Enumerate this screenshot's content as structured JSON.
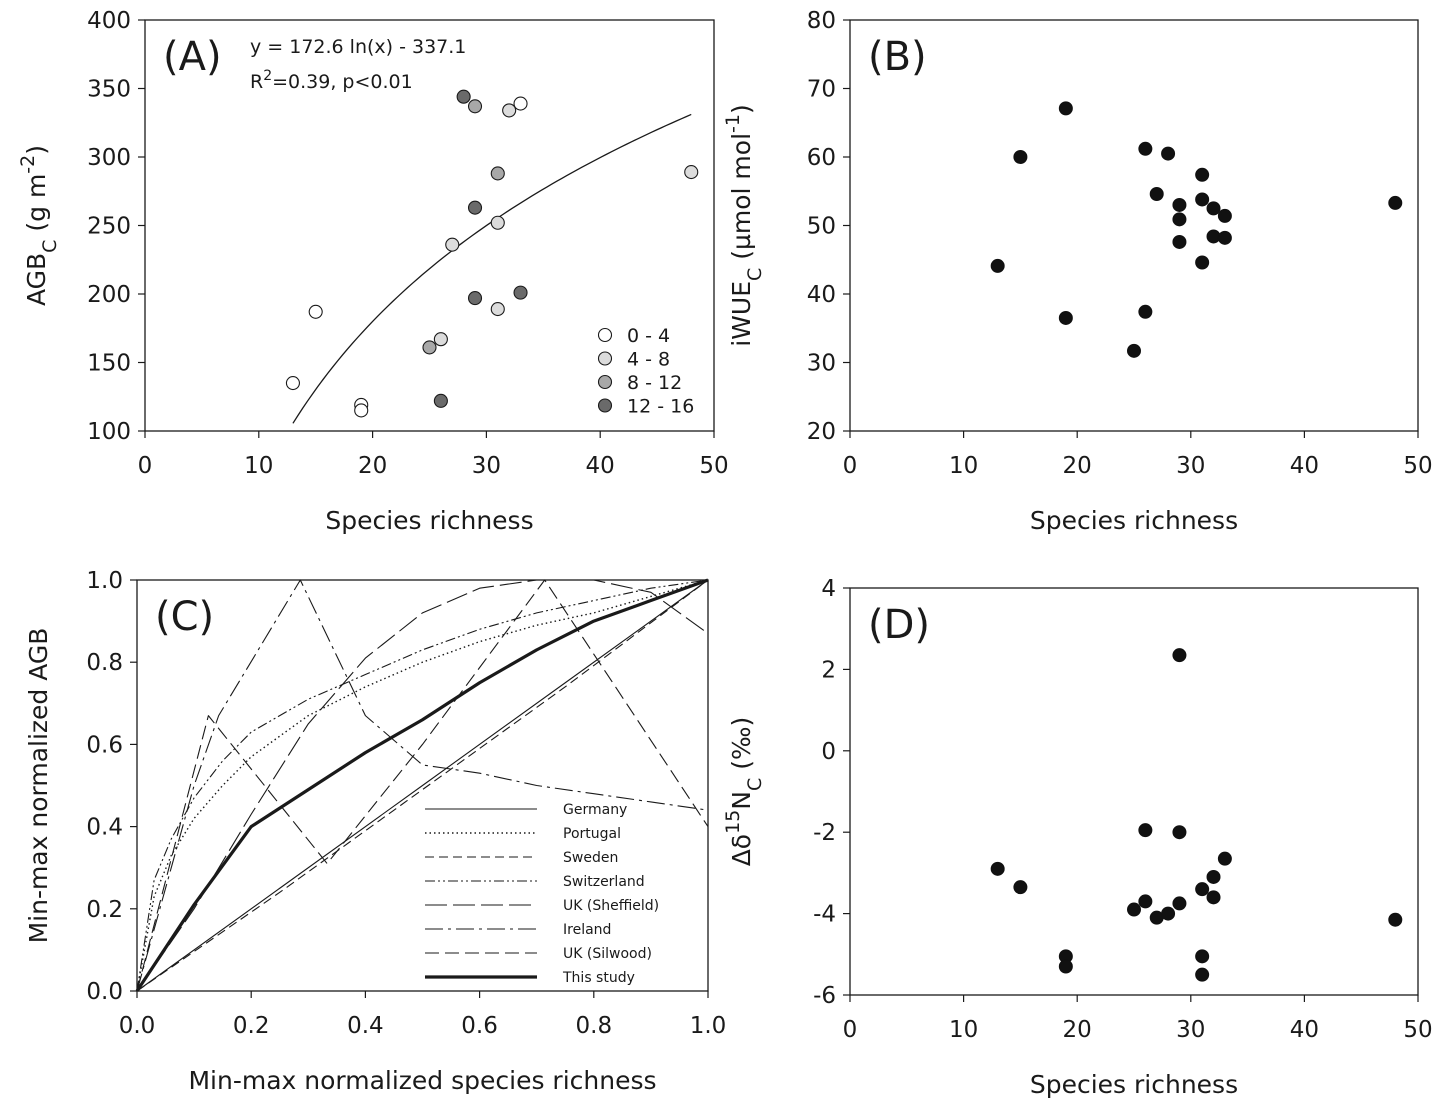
{
  "chart_data": [
    {
      "panel": "(A)",
      "type": "scatter",
      "xlabel": "Species richness",
      "ylabel": "AGB",
      "ylabel_sub": "C",
      "ylabel_unit_pre": " (g m",
      "ylabel_unit_sup": "-2",
      "ylabel_unit_post": ")",
      "xlim": [
        0,
        50
      ],
      "ylim": [
        100,
        400
      ],
      "xticks": [
        "0",
        "10",
        "20",
        "30",
        "40",
        "50"
      ],
      "yticks": [
        "100",
        "150",
        "200",
        "250",
        "300",
        "350",
        "400"
      ],
      "annotation_line1": "y = 172.6 ln(x) - 337.1",
      "annotation_r": "R",
      "annotation_r_sup": "2",
      "annotation_rest": "=0.39, p<0.01",
      "fit": {
        "a": 172.6,
        "b": -337.1,
        "x_range": [
          13,
          48
        ]
      },
      "legend": [
        {
          "label": "0 - 4",
          "color": "#ffffff"
        },
        {
          "label": "4 - 8",
          "color": "#dcdcdc"
        },
        {
          "label": "8 - 12",
          "color": "#a8a8a8"
        },
        {
          "label": "12 - 16",
          "color": "#6a6a6a"
        }
      ],
      "points": [
        {
          "x": 13,
          "y": 135,
          "group": 0
        },
        {
          "x": 15,
          "y": 187,
          "group": 0
        },
        {
          "x": 19,
          "y": 119,
          "group": 0
        },
        {
          "x": 19,
          "y": 115,
          "group": 0
        },
        {
          "x": 33,
          "y": 339,
          "group": 0
        },
        {
          "x": 27,
          "y": 236,
          "group": 1
        },
        {
          "x": 26,
          "y": 167,
          "group": 1
        },
        {
          "x": 31,
          "y": 252,
          "group": 1
        },
        {
          "x": 31,
          "y": 189,
          "group": 1
        },
        {
          "x": 32,
          "y": 334,
          "group": 1
        },
        {
          "x": 48,
          "y": 289,
          "group": 1
        },
        {
          "x": 25,
          "y": 161,
          "group": 2
        },
        {
          "x": 29,
          "y": 337,
          "group": 2
        },
        {
          "x": 31,
          "y": 288,
          "group": 2
        },
        {
          "x": 28,
          "y": 344,
          "group": 3
        },
        {
          "x": 29,
          "y": 263,
          "group": 3
        },
        {
          "x": 29,
          "y": 197,
          "group": 3
        },
        {
          "x": 33,
          "y": 201,
          "group": 3
        },
        {
          "x": 26,
          "y": 122,
          "group": 3
        }
      ]
    },
    {
      "panel": "(B)",
      "type": "scatter",
      "xlabel": "Species richness",
      "ylabel": "iWUE",
      "ylabel_sub": "C",
      "ylabel_unit_pre": " (µmol mol",
      "ylabel_unit_sup": "-1",
      "ylabel_unit_post": ")",
      "xlim": [
        0,
        50
      ],
      "ylim": [
        20,
        80
      ],
      "xticks": [
        "0",
        "10",
        "20",
        "30",
        "40",
        "50"
      ],
      "yticks": [
        "20",
        "30",
        "40",
        "50",
        "60",
        "70",
        "80"
      ],
      "points": [
        {
          "x": 13,
          "y": 44.1
        },
        {
          "x": 15,
          "y": 60.0
        },
        {
          "x": 19,
          "y": 67.1
        },
        {
          "x": 19,
          "y": 36.5
        },
        {
          "x": 25,
          "y": 31.7
        },
        {
          "x": 26,
          "y": 61.2
        },
        {
          "x": 26,
          "y": 37.4
        },
        {
          "x": 27,
          "y": 54.6
        },
        {
          "x": 28,
          "y": 60.5
        },
        {
          "x": 29,
          "y": 53.0
        },
        {
          "x": 29,
          "y": 50.9
        },
        {
          "x": 29,
          "y": 47.6
        },
        {
          "x": 31,
          "y": 57.4
        },
        {
          "x": 31,
          "y": 53.8
        },
        {
          "x": 31,
          "y": 44.6
        },
        {
          "x": 32,
          "y": 52.5
        },
        {
          "x": 32,
          "y": 48.4
        },
        {
          "x": 33,
          "y": 51.4
        },
        {
          "x": 33,
          "y": 48.2
        },
        {
          "x": 48,
          "y": 53.3
        }
      ]
    },
    {
      "panel": "(C)",
      "type": "line",
      "xlabel": "Min-max normalized species richness",
      "ylabel": "Min-max normalized AGB",
      "xlim": [
        0,
        1
      ],
      "ylim": [
        0,
        1
      ],
      "xticks": [
        "0.0",
        "0.2",
        "0.4",
        "0.6",
        "0.8",
        "1.0"
      ],
      "yticks": [
        "0.0",
        "0.2",
        "0.4",
        "0.6",
        "0.8",
        "1.0"
      ],
      "series": [
        {
          "name": "Germany",
          "dash": "",
          "width": 1.1,
          "x": [
            0,
            0.25,
            0.5,
            0.75,
            1
          ],
          "y": [
            0,
            0.25,
            0.5,
            0.75,
            1
          ]
        },
        {
          "name": "Portugal",
          "dash": "1.5,3",
          "width": 1.4,
          "x": [
            0,
            0.03,
            0.06,
            0.1,
            0.15,
            0.2,
            0.3,
            0.4,
            0.5,
            0.6,
            0.7,
            0.8,
            0.9,
            1
          ],
          "y": [
            0,
            0.23,
            0.33,
            0.42,
            0.5,
            0.57,
            0.67,
            0.74,
            0.8,
            0.85,
            0.89,
            0.92,
            0.96,
            1
          ]
        },
        {
          "name": "Sweden",
          "dash": "9,5",
          "width": 1.1,
          "x": [
            0,
            0.25,
            0.5,
            0.75,
            1
          ],
          "y": [
            0,
            0.24,
            0.49,
            0.74,
            1
          ]
        },
        {
          "name": "Switzerland",
          "dash": "10,3,2,3,2,3",
          "width": 1.1,
          "x": [
            0,
            0.03,
            0.06,
            0.1,
            0.15,
            0.2,
            0.3,
            0.4,
            0.5,
            0.6,
            0.7,
            0.8,
            0.9,
            1
          ],
          "y": [
            0,
            0.27,
            0.37,
            0.47,
            0.56,
            0.63,
            0.71,
            0.77,
            0.83,
            0.88,
            0.92,
            0.95,
            0.98,
            1
          ]
        },
        {
          "name": "UK (Sheffield)",
          "dash": "22,6",
          "width": 1.1,
          "x": [
            0,
            0.1,
            0.2,
            0.3,
            0.4,
            0.5,
            0.6,
            0.7,
            0.8,
            0.9,
            1
          ],
          "y": [
            0,
            0.2,
            0.43,
            0.65,
            0.81,
            0.92,
            0.98,
            1.0,
            1.0,
            0.97,
            0.87
          ]
        },
        {
          "name": "Ireland",
          "dash": "18,5,3,5",
          "width": 1.1,
          "x": [
            0,
            0.1,
            0.143,
            0.286,
            0.4,
            0.5,
            0.6,
            0.7,
            0.8,
            0.9,
            1
          ],
          "y": [
            0,
            0.5,
            0.67,
            1.0,
            0.67,
            0.55,
            0.53,
            0.5,
            0.48,
            0.46,
            0.44
          ]
        },
        {
          "name": "UK (Silwood)",
          "dash": "14,6",
          "width": 1.1,
          "x": [
            0,
            0.125,
            0.333,
            0.5,
            0.714,
            1
          ],
          "y": [
            0,
            0.67,
            0.31,
            0.6,
            1.0,
            0.4
          ]
        },
        {
          "name": "This study",
          "dash": "",
          "width": 3.2,
          "x": [
            0,
            0.1,
            0.2,
            0.3,
            0.4,
            0.5,
            0.6,
            0.7,
            0.8,
            0.9,
            1
          ],
          "y": [
            0,
            0.21,
            0.4,
            0.49,
            0.58,
            0.66,
            0.75,
            0.83,
            0.9,
            0.95,
            1
          ]
        }
      ]
    },
    {
      "panel": "(D)",
      "type": "scatter",
      "xlabel": "Species richness",
      "ylabel_pre": "Δδ",
      "ylabel_sup": "15",
      "ylabel_main": "N",
      "ylabel_sub": "C",
      "ylabel_unit": " (‰)",
      "xlim": [
        0,
        50
      ],
      "ylim": [
        -6,
        4
      ],
      "xticks": [
        "0",
        "10",
        "20",
        "30",
        "40",
        "50"
      ],
      "yticks": [
        "-6",
        "-4",
        "-2",
        "0",
        "2",
        "4"
      ],
      "points": [
        {
          "x": 13,
          "y": -2.9
        },
        {
          "x": 15,
          "y": -3.35
        },
        {
          "x": 19,
          "y": -5.05
        },
        {
          "x": 19,
          "y": -5.3
        },
        {
          "x": 25,
          "y": -3.9
        },
        {
          "x": 26,
          "y": -3.7
        },
        {
          "x": 26,
          "y": -1.95
        },
        {
          "x": 27,
          "y": -4.1
        },
        {
          "x": 28,
          "y": -4.0
        },
        {
          "x": 29,
          "y": -3.75
        },
        {
          "x": 29,
          "y": -2.0
        },
        {
          "x": 29,
          "y": 2.35
        },
        {
          "x": 31,
          "y": -3.4
        },
        {
          "x": 31,
          "y": -5.05
        },
        {
          "x": 31,
          "y": -5.5
        },
        {
          "x": 32,
          "y": -3.1
        },
        {
          "x": 32,
          "y": -3.6
        },
        {
          "x": 33,
          "y": -2.65
        },
        {
          "x": 48,
          "y": -4.15
        }
      ]
    }
  ]
}
